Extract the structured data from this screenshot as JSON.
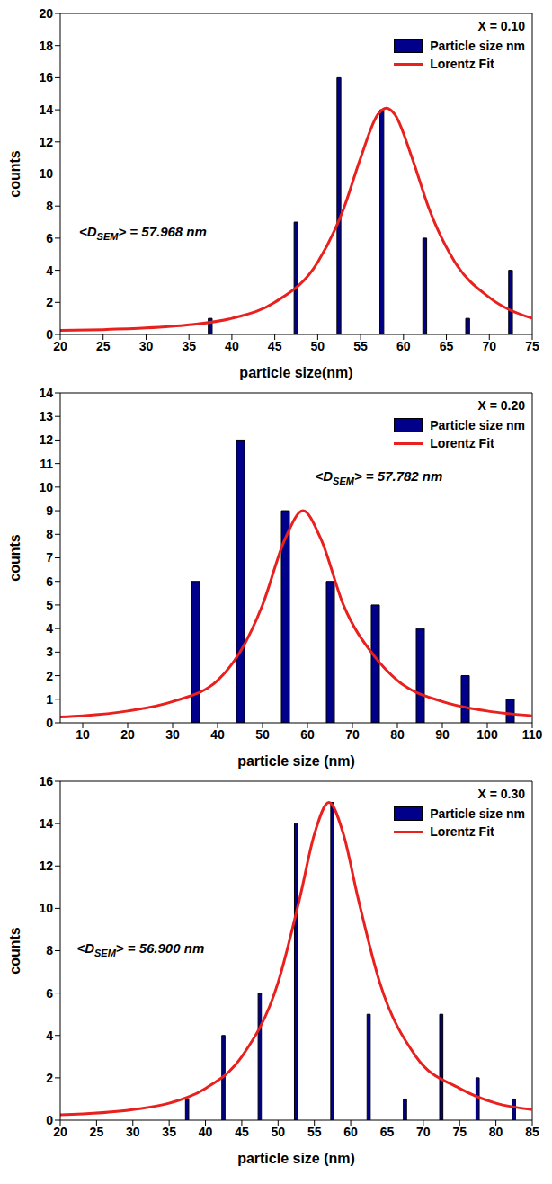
{
  "chart_data": [
    {
      "type": "histogram",
      "title": "X = 0.10",
      "x_label": "particle size(nm)",
      "y_label": "counts",
      "bins": [
        35,
        40,
        45,
        50,
        55,
        60,
        65,
        70,
        75
      ],
      "series": [
        {
          "name": "Particle size nm",
          "type": "bar",
          "color": "#00008b",
          "values": [
            1,
            0,
            7,
            16,
            14,
            6,
            1,
            4
          ]
        },
        {
          "name": "Lorentz Fit",
          "type": "line",
          "color": "#e8201e",
          "x": [
            20,
            25,
            30,
            35,
            40,
            45,
            50,
            53,
            55,
            57,
            58,
            59,
            61,
            63,
            66,
            70,
            75
          ],
          "values": [
            0.25,
            0.3,
            0.4,
            0.6,
            1.0,
            2.0,
            4.5,
            7.8,
            11,
            13.7,
            14.1,
            13.7,
            11,
            7.8,
            4.5,
            2.3,
            1.0
          ]
        }
      ],
      "annotation": [
        "<D",
        "SEM",
        "> = 57.968 nm"
      ],
      "xlim": [
        20,
        75
      ],
      "xticks": [
        20,
        25,
        30,
        35,
        40,
        45,
        50,
        55,
        60,
        65,
        70,
        75
      ],
      "ylim": [
        0,
        20
      ],
      "yticks": [
        0,
        2,
        4,
        6,
        8,
        10,
        12,
        14,
        16,
        18,
        20
      ],
      "legend": "upper right",
      "grid": false
    },
    {
      "type": "histogram",
      "title": "X = 0.20",
      "x_label": "particle size (nm)",
      "y_label": "counts",
      "bins": [
        30,
        40,
        50,
        60,
        70,
        80,
        90,
        100,
        110
      ],
      "series": [
        {
          "name": "Particle size nm",
          "type": "bar",
          "color": "#00008b",
          "values": [
            6,
            12,
            9,
            6,
            5,
            4,
            2,
            1
          ]
        },
        {
          "name": "Lorentz Fit",
          "type": "line",
          "color": "#e8201e",
          "x": [
            5,
            10,
            20,
            30,
            40,
            45,
            50,
            55,
            59,
            63,
            68,
            75,
            80,
            90,
            100,
            110
          ],
          "values": [
            0.25,
            0.3,
            0.5,
            0.9,
            1.8,
            3,
            5,
            7.8,
            9,
            7.8,
            5,
            2.8,
            1.8,
            0.9,
            0.5,
            0.3
          ]
        }
      ],
      "annotation": [
        "<D",
        "SEM",
        "> = 57.782 nm"
      ],
      "xlim": [
        5,
        110
      ],
      "xticks": [
        10,
        20,
        30,
        40,
        50,
        60,
        70,
        80,
        90,
        100,
        110
      ],
      "ylim": [
        0,
        14
      ],
      "yticks": [
        0,
        1,
        2,
        3,
        4,
        5,
        6,
        7,
        8,
        9,
        10,
        11,
        12,
        13,
        14
      ],
      "legend": "upper right",
      "grid": false
    },
    {
      "type": "histogram",
      "title": "X = 0.30",
      "x_label": "particle size (nm)",
      "y_label": "counts",
      "bins": [
        35,
        40,
        45,
        50,
        55,
        60,
        65,
        70,
        75,
        80,
        85
      ],
      "series": [
        {
          "name": "Particle size nm",
          "type": "bar",
          "color": "#00008b",
          "values": [
            1,
            4,
            6,
            14,
            15,
            5,
            1,
            5,
            2,
            1
          ]
        },
        {
          "name": "Lorentz Fit",
          "type": "line",
          "color": "#e8201e",
          "x": [
            20,
            30,
            35,
            40,
            45,
            50,
            53,
            55,
            57,
            59,
            61,
            64,
            69,
            75,
            80,
            85
          ],
          "values": [
            0.25,
            0.5,
            0.8,
            1.5,
            3,
            6.5,
            10.5,
            13.5,
            15,
            13.5,
            10.5,
            6.5,
            3,
            1.5,
            0.8,
            0.5
          ]
        }
      ],
      "annotation": [
        "<D",
        "SEM",
        "> = 56.900 nm"
      ],
      "xlim": [
        20,
        85
      ],
      "xticks": [
        20,
        25,
        30,
        35,
        40,
        45,
        50,
        55,
        60,
        65,
        70,
        75,
        80,
        85
      ],
      "ylim": [
        0,
        16
      ],
      "yticks": [
        0,
        2,
        4,
        6,
        8,
        10,
        12,
        14,
        16
      ],
      "legend": "upper right",
      "grid": false
    }
  ]
}
